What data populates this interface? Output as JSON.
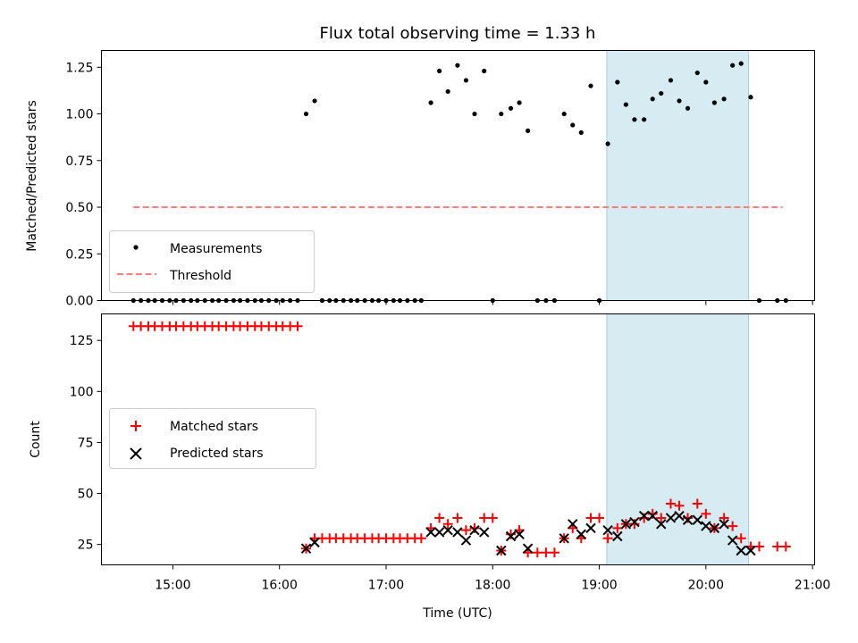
{
  "chart_data": [
    {
      "type": "scatter",
      "title": "Flux total observing time = 1.33 h",
      "xlabel": "",
      "ylabel": "Matched/Predicted stars",
      "x_unit": "hours UTC",
      "xlim": [
        14.33,
        21.02
      ],
      "ylim": [
        0.0,
        1.34
      ],
      "yticks": [
        "0.00",
        "0.25",
        "0.50",
        "0.75",
        "1.00",
        "1.25"
      ],
      "highlight_span": [
        19.07,
        20.4
      ],
      "highlight_color": "#add8e6",
      "legend_position": "lower left",
      "series": [
        {
          "name": "Measurements",
          "marker": "dot",
          "color": "#000000",
          "points": [
            [
              14.63,
              0
            ],
            [
              14.7,
              0
            ],
            [
              14.77,
              0
            ],
            [
              14.83,
              0
            ],
            [
              14.9,
              0
            ],
            [
              14.97,
              0
            ],
            [
              15.03,
              0
            ],
            [
              15.1,
              0
            ],
            [
              15.17,
              0
            ],
            [
              15.23,
              0
            ],
            [
              15.3,
              0
            ],
            [
              15.37,
              0
            ],
            [
              15.43,
              0
            ],
            [
              15.5,
              0
            ],
            [
              15.57,
              0
            ],
            [
              15.63,
              0
            ],
            [
              15.7,
              0
            ],
            [
              15.77,
              0
            ],
            [
              15.83,
              0
            ],
            [
              15.9,
              0
            ],
            [
              15.97,
              0
            ],
            [
              16.03,
              0
            ],
            [
              16.1,
              0
            ],
            [
              16.17,
              0
            ],
            [
              16.25,
              1.0
            ],
            [
              16.33,
              1.07
            ],
            [
              16.4,
              0
            ],
            [
              16.47,
              0
            ],
            [
              16.53,
              0
            ],
            [
              16.6,
              0
            ],
            [
              16.67,
              0
            ],
            [
              16.73,
              0
            ],
            [
              16.8,
              0
            ],
            [
              16.87,
              0
            ],
            [
              16.93,
              0
            ],
            [
              17.0,
              0
            ],
            [
              17.07,
              0
            ],
            [
              17.13,
              0
            ],
            [
              17.2,
              0
            ],
            [
              17.27,
              0
            ],
            [
              17.33,
              0
            ],
            [
              17.42,
              1.06
            ],
            [
              17.5,
              1.23
            ],
            [
              17.58,
              1.12
            ],
            [
              17.67,
              1.26
            ],
            [
              17.75,
              1.18
            ],
            [
              17.83,
              1.0
            ],
            [
              17.92,
              1.23
            ],
            [
              18.0,
              0
            ],
            [
              18.08,
              1.0
            ],
            [
              18.17,
              1.03
            ],
            [
              18.25,
              1.06
            ],
            [
              18.33,
              0.91
            ],
            [
              18.42,
              0
            ],
            [
              18.5,
              0
            ],
            [
              18.58,
              0
            ],
            [
              18.67,
              1.0
            ],
            [
              18.75,
              0.94
            ],
            [
              18.83,
              0.9
            ],
            [
              18.92,
              1.15
            ],
            [
              19.0,
              0
            ],
            [
              19.08,
              0.84
            ],
            [
              19.17,
              1.17
            ],
            [
              19.25,
              1.05
            ],
            [
              19.33,
              0.97
            ],
            [
              19.42,
              0.97
            ],
            [
              19.5,
              1.08
            ],
            [
              19.58,
              1.11
            ],
            [
              19.67,
              1.18
            ],
            [
              19.75,
              1.07
            ],
            [
              19.83,
              1.03
            ],
            [
              19.92,
              1.22
            ],
            [
              20.0,
              1.17
            ],
            [
              20.08,
              1.06
            ],
            [
              20.17,
              1.08
            ],
            [
              20.25,
              1.26
            ],
            [
              20.33,
              1.27
            ],
            [
              20.42,
              1.09
            ],
            [
              20.5,
              0
            ],
            [
              20.67,
              0
            ],
            [
              20.75,
              0
            ]
          ]
        },
        {
          "name": "Threshold",
          "marker": "dashed-line",
          "color": "#ff7f7f",
          "points": [
            [
              14.63,
              0.5
            ],
            [
              20.72,
              0.5
            ]
          ]
        }
      ]
    },
    {
      "type": "scatter",
      "title": "",
      "xlabel": "Time (UTC)",
      "ylabel": "Count",
      "x_unit": "hours UTC",
      "xlim": [
        14.33,
        21.02
      ],
      "ylim": [
        15,
        138
      ],
      "yticks": [
        "25",
        "50",
        "75",
        "100",
        "125"
      ],
      "xticks": [
        "15:00",
        "16:00",
        "17:00",
        "18:00",
        "19:00",
        "20:00",
        "21:00"
      ],
      "highlight_span": [
        19.07,
        20.4
      ],
      "highlight_color": "#add8e6",
      "legend_position": "center left",
      "series": [
        {
          "name": "Matched stars",
          "marker": "plus",
          "color": "#ff0000",
          "points": [
            [
              14.63,
              132
            ],
            [
              14.7,
              132
            ],
            [
              14.77,
              132
            ],
            [
              14.83,
              132
            ],
            [
              14.9,
              132
            ],
            [
              14.97,
              132
            ],
            [
              15.03,
              132
            ],
            [
              15.1,
              132
            ],
            [
              15.17,
              132
            ],
            [
              15.23,
              132
            ],
            [
              15.3,
              132
            ],
            [
              15.37,
              132
            ],
            [
              15.43,
              132
            ],
            [
              15.5,
              132
            ],
            [
              15.57,
              132
            ],
            [
              15.63,
              132
            ],
            [
              15.7,
              132
            ],
            [
              15.77,
              132
            ],
            [
              15.83,
              132
            ],
            [
              15.9,
              132
            ],
            [
              15.97,
              132
            ],
            [
              16.03,
              132
            ],
            [
              16.1,
              132
            ],
            [
              16.17,
              132
            ],
            [
              16.25,
              23
            ],
            [
              16.33,
              28
            ],
            [
              16.4,
              28
            ],
            [
              16.47,
              28
            ],
            [
              16.53,
              28
            ],
            [
              16.6,
              28
            ],
            [
              16.67,
              28
            ],
            [
              16.73,
              28
            ],
            [
              16.8,
              28
            ],
            [
              16.87,
              28
            ],
            [
              16.93,
              28
            ],
            [
              17.0,
              28
            ],
            [
              17.07,
              28
            ],
            [
              17.13,
              28
            ],
            [
              17.2,
              28
            ],
            [
              17.27,
              28
            ],
            [
              17.33,
              28
            ],
            [
              17.42,
              33
            ],
            [
              17.5,
              38
            ],
            [
              17.58,
              35
            ],
            [
              17.67,
              38
            ],
            [
              17.75,
              32
            ],
            [
              17.83,
              33
            ],
            [
              17.92,
              38
            ],
            [
              18.0,
              38
            ],
            [
              18.08,
              22
            ],
            [
              18.17,
              30
            ],
            [
              18.25,
              32
            ],
            [
              18.33,
              21
            ],
            [
              18.42,
              21
            ],
            [
              18.5,
              21
            ],
            [
              18.58,
              21
            ],
            [
              18.67,
              28
            ],
            [
              18.75,
              33
            ],
            [
              18.83,
              28
            ],
            [
              18.92,
              38
            ],
            [
              19.0,
              38
            ],
            [
              19.08,
              28
            ],
            [
              19.17,
              33
            ],
            [
              19.25,
              35
            ],
            [
              19.33,
              35
            ],
            [
              19.42,
              38
            ],
            [
              19.5,
              40
            ],
            [
              19.58,
              38
            ],
            [
              19.67,
              45
            ],
            [
              19.75,
              44
            ],
            [
              19.83,
              38
            ],
            [
              19.92,
              45
            ],
            [
              20.0,
              40
            ],
            [
              20.08,
              33
            ],
            [
              20.17,
              38
            ],
            [
              20.25,
              34
            ],
            [
              20.33,
              28
            ],
            [
              20.42,
              24
            ],
            [
              20.5,
              24
            ],
            [
              20.67,
              24
            ],
            [
              20.75,
              24
            ]
          ]
        },
        {
          "name": "Predicted stars",
          "marker": "x",
          "color": "#000000",
          "points": [
            [
              16.25,
              23
            ],
            [
              16.33,
              26
            ],
            [
              17.42,
              31
            ],
            [
              17.5,
              31
            ],
            [
              17.58,
              32
            ],
            [
              17.67,
              31
            ],
            [
              17.75,
              27
            ],
            [
              17.83,
              32
            ],
            [
              17.92,
              31
            ],
            [
              18.08,
              22
            ],
            [
              18.17,
              29
            ],
            [
              18.25,
              30
            ],
            [
              18.33,
              23
            ],
            [
              18.67,
              28
            ],
            [
              18.75,
              35
            ],
            [
              18.83,
              30
            ],
            [
              18.92,
              33
            ],
            [
              19.08,
              32
            ],
            [
              19.17,
              29
            ],
            [
              19.25,
              35
            ],
            [
              19.33,
              36
            ],
            [
              19.42,
              39
            ],
            [
              19.5,
              39
            ],
            [
              19.58,
              35
            ],
            [
              19.67,
              38
            ],
            [
              19.75,
              39
            ],
            [
              19.83,
              37
            ],
            [
              19.92,
              37
            ],
            [
              20.0,
              34
            ],
            [
              20.08,
              33
            ],
            [
              20.17,
              35
            ],
            [
              20.25,
              27
            ],
            [
              20.33,
              22
            ],
            [
              20.42,
              22
            ]
          ]
        }
      ]
    }
  ]
}
